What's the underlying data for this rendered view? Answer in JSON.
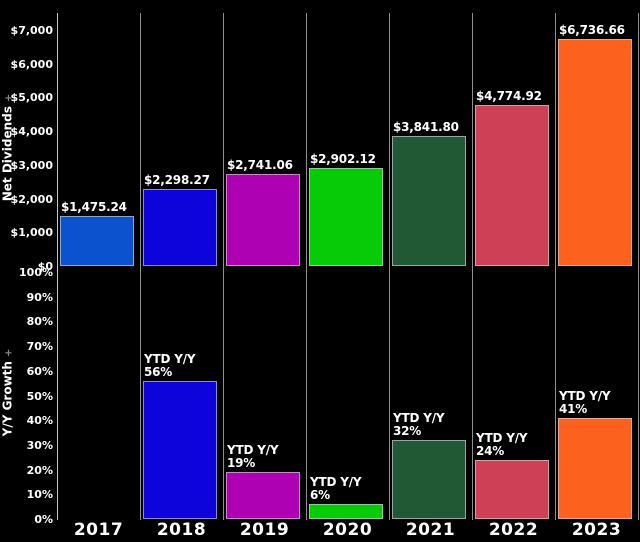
{
  "chart_data": {
    "type": "bar",
    "title": "",
    "categories": [
      "2017",
      "2018",
      "2019",
      "2020",
      "2021",
      "2022",
      "2023"
    ],
    "bar_colors": [
      "#0B52CE",
      "#0D04DB",
      "#AF01B4",
      "#07CB07",
      "#215934",
      "#CD4056",
      "#FC611E"
    ],
    "panels": [
      {
        "name": "Net Dividends",
        "axis_mark": "+",
        "values": [
          1475.24,
          2298.27,
          2741.06,
          2902.12,
          3841.8,
          4774.92,
          6736.66
        ],
        "bar_labels": [
          "$1,475.24",
          "$2,298.27",
          "$2,741.06",
          "$2,902.12",
          "$3,841.80",
          "$4,774.92",
          "$6,736.66"
        ],
        "ylim": [
          0,
          7000
        ],
        "tick_labels": [
          "$7,000",
          "$6,000",
          "$5,000",
          "$4,000",
          "$3,000",
          "$2,000",
          "$1,000",
          "$0"
        ],
        "tick_values": [
          7000,
          6000,
          5000,
          4000,
          3000,
          2000,
          1000,
          0
        ]
      },
      {
        "name": "Y/Y Growth",
        "axis_mark": "+",
        "values": [
          null,
          56,
          19,
          6,
          32,
          24,
          41
        ],
        "bar_labels": [
          null,
          "YTD Y/Y\n56%",
          "YTD Y/Y\n19%",
          "YTD Y/Y\n6%",
          "YTD Y/Y\n32%",
          "YTD Y/Y\n24%",
          "YTD Y/Y\n41%"
        ],
        "ylim": [
          0,
          100
        ],
        "tick_labels": [
          "100%",
          "90%",
          "80%",
          "70%",
          "60%",
          "50%",
          "40%",
          "30%",
          "20%",
          "10%",
          "0%"
        ],
        "tick_values": [
          100,
          90,
          80,
          70,
          60,
          50,
          40,
          30,
          20,
          10,
          0
        ]
      }
    ],
    "layout": {
      "background": "#000000",
      "text_color": "#ffffff",
      "axis_line_color": "#c8c8c8",
      "separator_color": "#909090",
      "legend": "none",
      "grid": "vertical-column-separators-only"
    }
  }
}
